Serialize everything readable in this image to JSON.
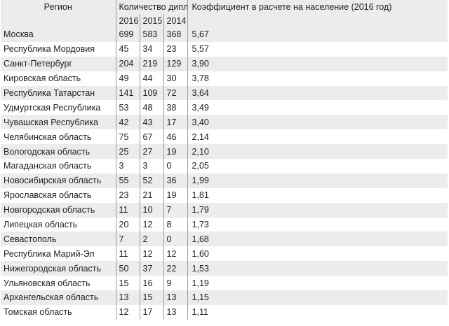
{
  "header": {
    "region": "Регион",
    "diplomas": "Количество дипломов",
    "coefficient": "Коэффициент в расчете на население (2016 год)",
    "years": [
      "2016",
      "2015",
      "2014"
    ]
  },
  "rows": [
    {
      "region": "Москва",
      "y2016": "699",
      "y2015": "583",
      "y2014": "368",
      "coef": "5,67"
    },
    {
      "region": "Республика Мордовия",
      "y2016": "45",
      "y2015": "34",
      "y2014": "23",
      "coef": "5,57"
    },
    {
      "region": "Санкт-Петербург",
      "y2016": "204",
      "y2015": "219",
      "y2014": "129",
      "coef": "3,90"
    },
    {
      "region": "Кировская область",
      "y2016": "49",
      "y2015": "44",
      "y2014": "30",
      "coef": "3,78"
    },
    {
      "region": "Республика Татарстан",
      "y2016": "141",
      "y2015": "109",
      "y2014": "72",
      "coef": "3,64"
    },
    {
      "region": "Удмуртская Республика",
      "y2016": "53",
      "y2015": "48",
      "y2014": "38",
      "coef": "3,49"
    },
    {
      "region": "Чувашская Республика",
      "y2016": "42",
      "y2015": "43",
      "y2014": "17",
      "coef": "3,40"
    },
    {
      "region": "Челябинская область",
      "y2016": "75",
      "y2015": "67",
      "y2014": "46",
      "coef": "2,14"
    },
    {
      "region": "Вологодская область",
      "y2016": "25",
      "y2015": "27",
      "y2014": "19",
      "coef": "2,10"
    },
    {
      "region": "Магаданская область",
      "y2016": "3",
      "y2015": "3",
      "y2014": "0",
      "coef": "2,05"
    },
    {
      "region": "Новосибирская область",
      "y2016": "55",
      "y2015": "52",
      "y2014": "36",
      "coef": "1,99"
    },
    {
      "region": "Ярославская область",
      "y2016": "23",
      "y2015": "21",
      "y2014": "19",
      "coef": "1,81"
    },
    {
      "region": "Новгородская область",
      "y2016": "11",
      "y2015": "10",
      "y2014": "7",
      "coef": "1,79"
    },
    {
      "region": "Липецкая область",
      "y2016": "20",
      "y2015": "12",
      "y2014": "8",
      "coef": "1,73"
    },
    {
      "region": "Севастополь",
      "y2016": "7",
      "y2015": "2",
      "y2014": "0",
      "coef": "1,68"
    },
    {
      "region": "Республика Марий-Эл",
      "y2016": "11",
      "y2015": "12",
      "y2014": "12",
      "coef": "1,60"
    },
    {
      "region": "Нижегородская область",
      "y2016": "50",
      "y2015": "37",
      "y2014": "22",
      "coef": "1,53"
    },
    {
      "region": "Ульяновская область",
      "y2016": "15",
      "y2015": "16",
      "y2014": "9",
      "coef": "1,19"
    },
    {
      "region": "Архангельская область",
      "y2016": "13",
      "y2015": "15",
      "y2014": "13",
      "coef": "1,15"
    },
    {
      "region": "Томская область",
      "y2016": "12",
      "y2015": "17",
      "y2014": "13",
      "coef": "1,11"
    }
  ],
  "colors": {
    "stripe": "#ececec",
    "divider": "#9a9a9a",
    "logo": "#e8d5c8"
  },
  "logo_icon": "ornament-logo-icon"
}
